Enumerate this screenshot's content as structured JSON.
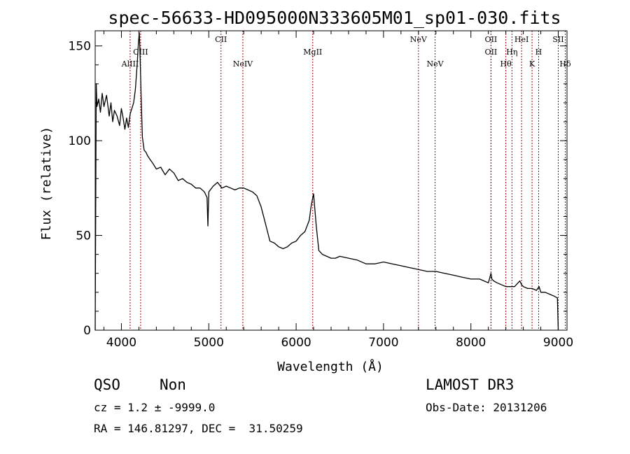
{
  "chart_data": {
    "type": "line",
    "title": "spec-56633-HD095000N333605M01_sp01-030.fits",
    "xlabel": "Wavelength (Å)",
    "ylabel": "Flux (relative)",
    "xlim": [
      3700,
      9100
    ],
    "ylim": [
      0,
      158
    ],
    "xticks": [
      4000,
      5000,
      6000,
      7000,
      8000,
      9000
    ],
    "yticks": [
      0,
      50,
      100,
      150
    ],
    "grid": false,
    "series": [
      {
        "color": "#000000",
        "x": [
          3700,
          3712,
          3720,
          3740,
          3760,
          3780,
          3800,
          3830,
          3860,
          3880,
          3900,
          3920,
          3950,
          3980,
          4000,
          4020,
          4040,
          4060,
          4080,
          4100,
          4120,
          4140,
          4160,
          4180,
          4195,
          4205,
          4215,
          4225,
          4240,
          4260,
          4280,
          4300,
          4330,
          4360,
          4400,
          4450,
          4500,
          4550,
          4600,
          4650,
          4700,
          4750,
          4800,
          4850,
          4900,
          4950,
          4980,
          4990,
          5000,
          5050,
          5100,
          5150,
          5200,
          5250,
          5300,
          5350,
          5400,
          5450,
          5500,
          5550,
          5600,
          5650,
          5700,
          5750,
          5800,
          5850,
          5900,
          5950,
          6000,
          6050,
          6100,
          6150,
          6170,
          6190,
          6200,
          6210,
          6230,
          6260,
          6300,
          6350,
          6400,
          6450,
          6500,
          6600,
          6700,
          6800,
          6900,
          7000,
          7100,
          7200,
          7300,
          7400,
          7500,
          7600,
          7700,
          7800,
          7900,
          8000,
          8100,
          8200,
          8230,
          8240,
          8260,
          8300,
          8400,
          8500,
          8560,
          8580,
          8600,
          8650,
          8700,
          8750,
          8780,
          8800,
          8850,
          8900,
          8950,
          8990,
          9000
        ],
        "y": [
          0,
          130,
          118,
          122,
          115,
          125,
          118,
          124,
          113,
          120,
          110,
          116,
          113,
          108,
          117,
          112,
          106,
          112,
          107,
          114,
          117,
          120,
          127,
          140,
          152,
          157,
          143,
          125,
          102,
          95,
          94,
          92,
          90,
          88,
          85,
          86,
          82,
          85,
          83,
          79,
          80,
          78,
          77,
          75,
          75,
          73,
          70,
          55,
          73,
          76,
          78,
          75,
          76,
          75,
          74,
          75,
          75,
          74,
          73,
          71,
          65,
          56,
          47,
          46,
          44,
          43,
          44,
          46,
          47,
          50,
          52,
          58,
          65,
          70,
          72,
          66,
          55,
          42,
          40,
          39,
          38,
          38,
          39,
          38,
          37,
          35,
          35,
          36,
          35,
          34,
          33,
          32,
          31,
          31,
          30,
          29,
          28,
          27,
          27,
          25,
          30,
          27,
          26,
          25,
          23,
          23,
          26,
          24,
          23,
          22,
          22,
          21,
          23,
          20,
          20,
          19,
          18,
          17,
          0
        ]
      }
    ],
    "emission_lines": [
      {
        "label": "AlIII",
        "x": 4100,
        "row": 2
      },
      {
        "label": "CIII",
        "x": 4220,
        "row": 1
      },
      {
        "label": "CII",
        "x": 5140,
        "row": 0
      },
      {
        "label": "NeIV",
        "x": 5390,
        "row": 2
      },
      {
        "label": "MgII",
        "x": 6190,
        "row": 1
      },
      {
        "label": "NeV",
        "x": 7400,
        "row": 0
      },
      {
        "label": "NeV",
        "x": 7590,
        "row": 2
      },
      {
        "label": "OII",
        "x": 8230,
        "row": 0
      },
      {
        "label": "OII",
        "x": 8230,
        "row": 1
      },
      {
        "label": "Hθ",
        "x": 8400,
        "row": 2
      },
      {
        "label": "Hη",
        "x": 8470,
        "row": 1
      },
      {
        "label": "HeI",
        "x": 8580,
        "row": 0
      },
      {
        "label": "K",
        "x": 8700,
        "row": 2
      },
      {
        "label": "H",
        "x": 8775,
        "row": 1
      },
      {
        "label": "SII",
        "x": 9000,
        "row": 0
      },
      {
        "label": "Hδ",
        "x": 9080,
        "row": 2
      }
    ]
  },
  "info": {
    "class": "QSO",
    "subclass": "Non",
    "survey": "LAMOST DR3",
    "cz": "cz = 1.2 ± -9999.0",
    "obs_date": "Obs-Date: 20131206",
    "coords": "RA = 146.81297, DEC =  31.50259"
  },
  "colors": {
    "spectrum": "#000000",
    "line_markers": "#b00000",
    "background": "#ffffff"
  }
}
